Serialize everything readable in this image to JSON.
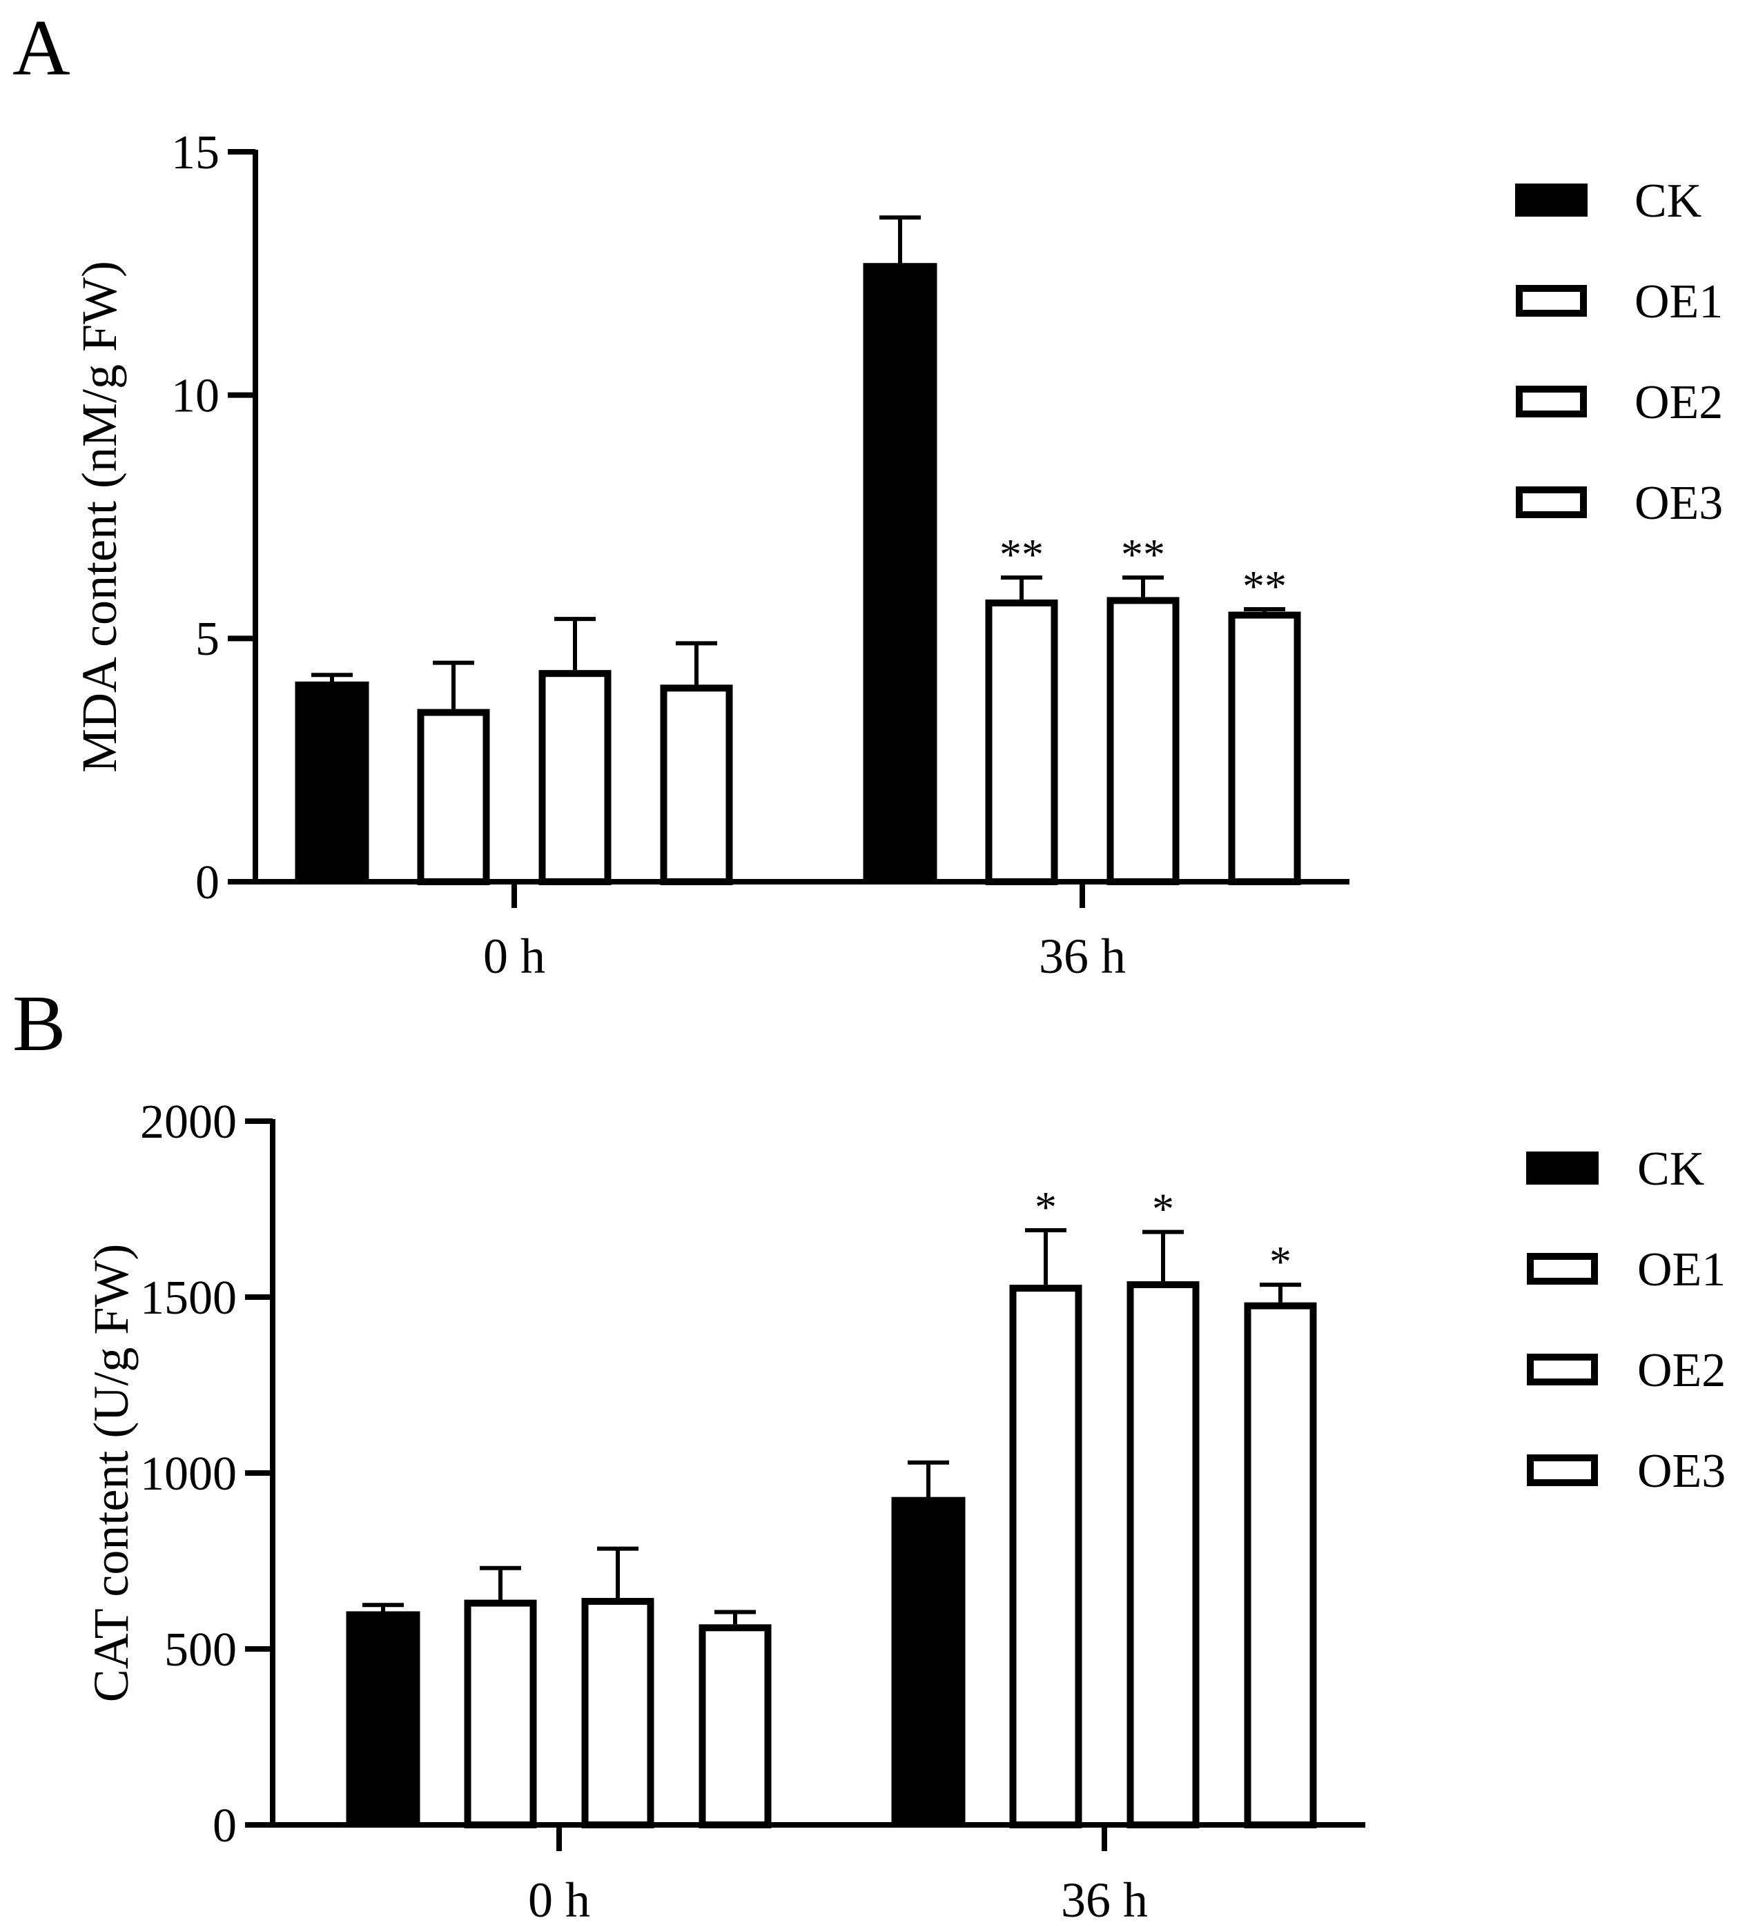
{
  "chart_data": [
    {
      "panel_label": "A",
      "type": "bar",
      "categories": [
        "0 h",
        "36 h"
      ],
      "ylabel": "MDA content (nM/g FW)",
      "ylim": [
        0,
        15
      ],
      "yticks": [
        0,
        5,
        10,
        15
      ],
      "ytick_labels": [
        "0",
        "5",
        "10",
        "15"
      ],
      "legend_position": "right",
      "series": [
        {
          "name": "CK",
          "fill": "solid",
          "values": [
            4.1,
            12.7
          ],
          "errors": [
            0.15,
            0.95
          ],
          "significance": [
            "",
            ""
          ]
        },
        {
          "name": "OE1",
          "fill": "hollow",
          "values": [
            3.55,
            5.8
          ],
          "errors": [
            0.95,
            0.45
          ],
          "significance": [
            "",
            "**"
          ]
        },
        {
          "name": "OE2",
          "fill": "hollow",
          "values": [
            4.35,
            5.85
          ],
          "errors": [
            1.05,
            0.4
          ],
          "significance": [
            "",
            "**"
          ]
        },
        {
          "name": "OE3",
          "fill": "hollow",
          "values": [
            4.05,
            5.55
          ],
          "errors": [
            0.85,
            0.05
          ],
          "significance": [
            "",
            "**"
          ]
        }
      ]
    },
    {
      "panel_label": "B",
      "type": "bar",
      "categories": [
        "0 h",
        "36 h"
      ],
      "ylabel": "CAT content (U/g FW)",
      "ylim": [
        0,
        2000
      ],
      "yticks": [
        0,
        500,
        1000,
        1500,
        2000
      ],
      "ytick_labels": [
        "0",
        "500",
        "1000",
        "1500",
        "2000"
      ],
      "legend_position": "right",
      "series": [
        {
          "name": "CK",
          "fill": "solid",
          "values": [
            605,
            930
          ],
          "errors": [
            20,
            100
          ],
          "significance": [
            "",
            ""
          ]
        },
        {
          "name": "OE1",
          "fill": "hollow",
          "values": [
            640,
            1535
          ],
          "errors": [
            90,
            155
          ],
          "significance": [
            "",
            "*"
          ]
        },
        {
          "name": "OE2",
          "fill": "hollow",
          "values": [
            645,
            1545
          ],
          "errors": [
            140,
            140
          ],
          "significance": [
            "",
            "*"
          ]
        },
        {
          "name": "OE3",
          "fill": "hollow",
          "values": [
            570,
            1485
          ],
          "errors": [
            35,
            50
          ],
          "significance": [
            "",
            "*"
          ]
        }
      ]
    }
  ],
  "colors": {
    "ink": "#000000",
    "paper": "#ffffff"
  }
}
